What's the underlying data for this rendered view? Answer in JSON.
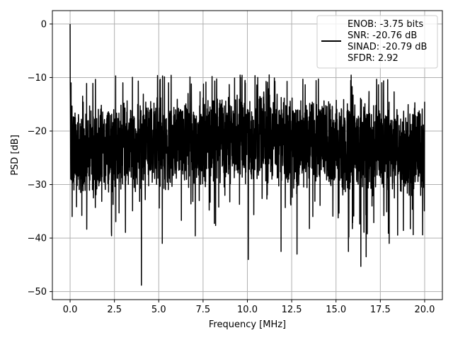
{
  "chart_data": {
    "type": "line",
    "xlabel": "Frequency [MHz]",
    "ylabel": "PSD [dB]",
    "xlim": [
      -1.0,
      21.0
    ],
    "ylim": [
      -51.5,
      2.5
    ],
    "xticks": [
      0.0,
      2.5,
      5.0,
      7.5,
      10.0,
      12.5,
      15.0,
      17.5,
      20.0
    ],
    "xtick_labels": [
      "0.0",
      "2.5",
      "5.0",
      "7.5",
      "10.0",
      "12.5",
      "15.0",
      "17.5",
      "20.0"
    ],
    "yticks": [
      0,
      -10,
      -20,
      -30,
      -40,
      -50
    ],
    "ytick_labels": [
      "0",
      "−10",
      "−20",
      "−30",
      "−40",
      "−50"
    ],
    "grid": true,
    "legend_position": "top-right",
    "legend": [
      "ENOB: -3.75 bits",
      "SNR: -20.76 dB",
      "SINAD: -20.79 dB",
      "SFDR: 2.92"
    ],
    "series_color": "#000000",
    "grid_color": "#b0b0b0",
    "x_end": 20.0,
    "baseline_db": -22.5,
    "spread_db": 6.5,
    "peaks": [
      {
        "x": 0.0,
        "y": 0.0
      },
      {
        "x": 0.05,
        "y": -11.0
      },
      {
        "x": 4.02,
        "y": -48.8
      },
      {
        "x": 5.2,
        "y": -41.0
      },
      {
        "x": 10.05,
        "y": -44.0
      },
      {
        "x": 16.4,
        "y": -45.3
      },
      {
        "x": 16.7,
        "y": -43.5
      },
      {
        "x": 18.0,
        "y": -41.0
      },
      {
        "x": 11.9,
        "y": -42.5
      },
      {
        "x": 12.8,
        "y": -43.0
      },
      {
        "x": 15.7,
        "y": -42.5
      }
    ]
  }
}
